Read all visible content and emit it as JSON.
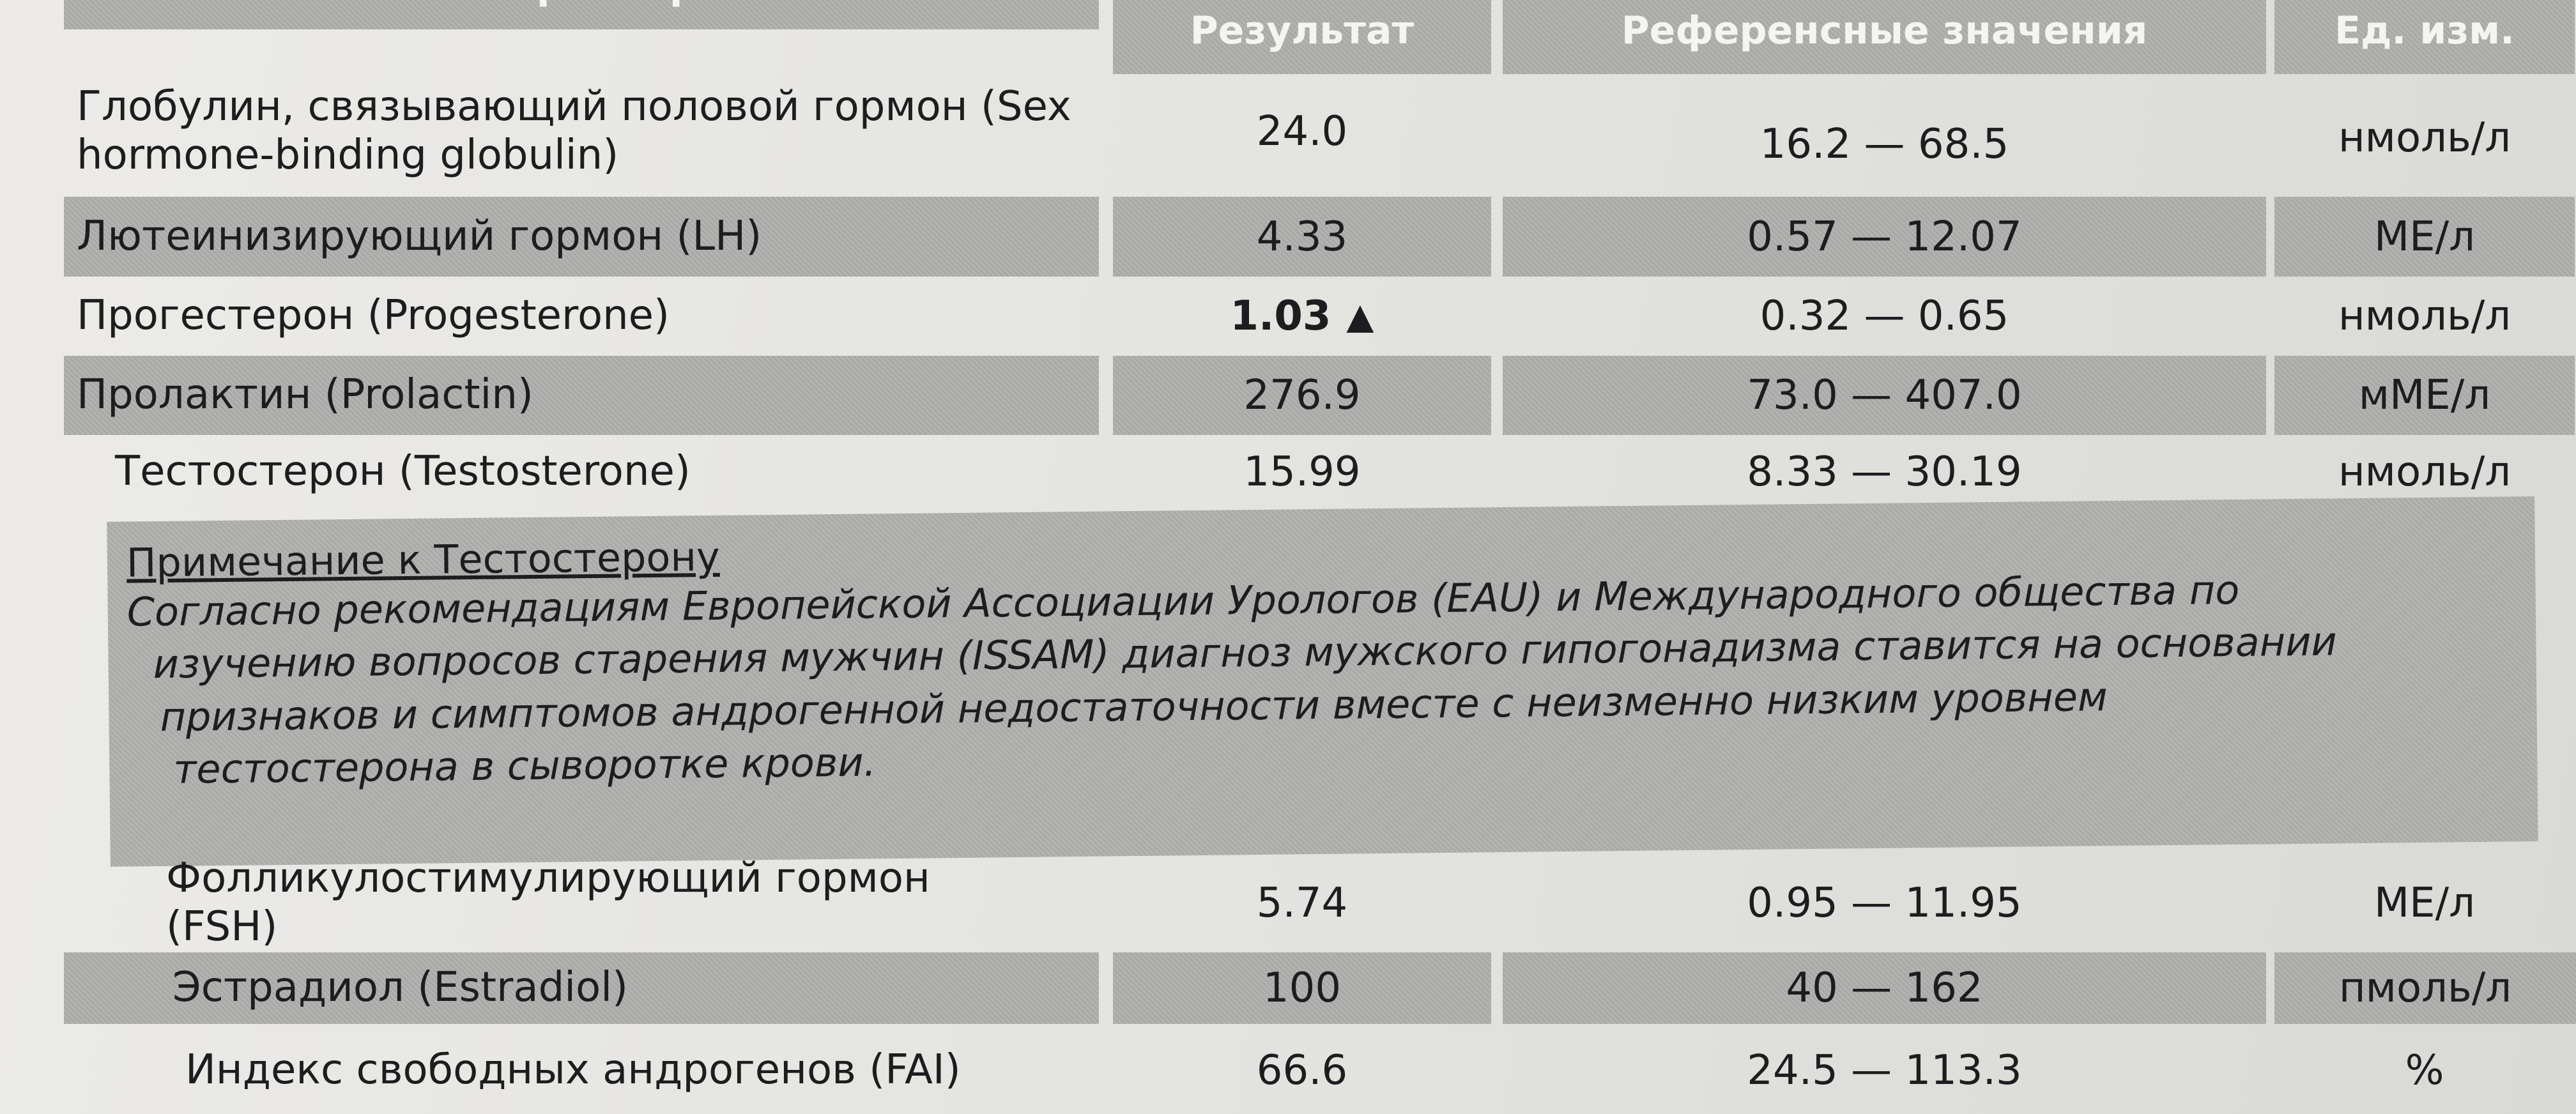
{
  "header": {
    "parameter": "Параметр",
    "result": "Результат",
    "reference": "Референсные значения",
    "unit": "Ед. изм."
  },
  "rows": [
    {
      "parameter": "Глобулин, связывающий половой гормон (Sex hormone-binding globulin)",
      "result": "24.0",
      "reference": "16.2 — 68.5",
      "unit": "нмоль/л"
    },
    {
      "parameter": "Лютеинизирующий гормон (LH)",
      "result": "4.33",
      "reference": "0.57 — 12.07",
      "unit": "МЕ/л"
    },
    {
      "parameter": "Прогестерон (Progesterone)",
      "result": "1.03",
      "flag": "▲",
      "reference": "0.32 — 0.65",
      "unit": "нмоль/л"
    },
    {
      "parameter": "Пролактин (Prolactin)",
      "result": "276.9",
      "reference": "73.0 — 407.0",
      "unit": "мМЕ/л"
    },
    {
      "parameter": "Тестостерон (Testosterone)",
      "result": "15.99",
      "reference": "8.33 — 30.19",
      "unit": "нмоль/л"
    },
    {
      "parameter": "Фолликулостимулирующий гормон (FSH)",
      "result": "5.74",
      "reference": "0.95 — 11.95",
      "unit": "МЕ/л"
    },
    {
      "parameter": "Эстрадиол (Estradiol)",
      "result": "100",
      "reference": "40 — 162",
      "unit": "пмоль/л"
    },
    {
      "parameter": "Индекс свободных андрогенов (FAI)",
      "result": "66.6",
      "reference": "24.5 — 113.3",
      "unit": "%"
    }
  ],
  "note": {
    "title": "Примечание к Тестостерону",
    "lines": [
      "Согласно рекомендациям Европейской Ассоциации Урологов (EAU) и Международного общества по",
      "изучению вопросов старения мужчин (ISSAM) диагноз мужского гипогонадизма ставится на основании",
      "признаков и симптомов андрогенной недостаточности вместе с неизменно низким уровнем",
      "тестостерона в сыворотке крови."
    ]
  }
}
